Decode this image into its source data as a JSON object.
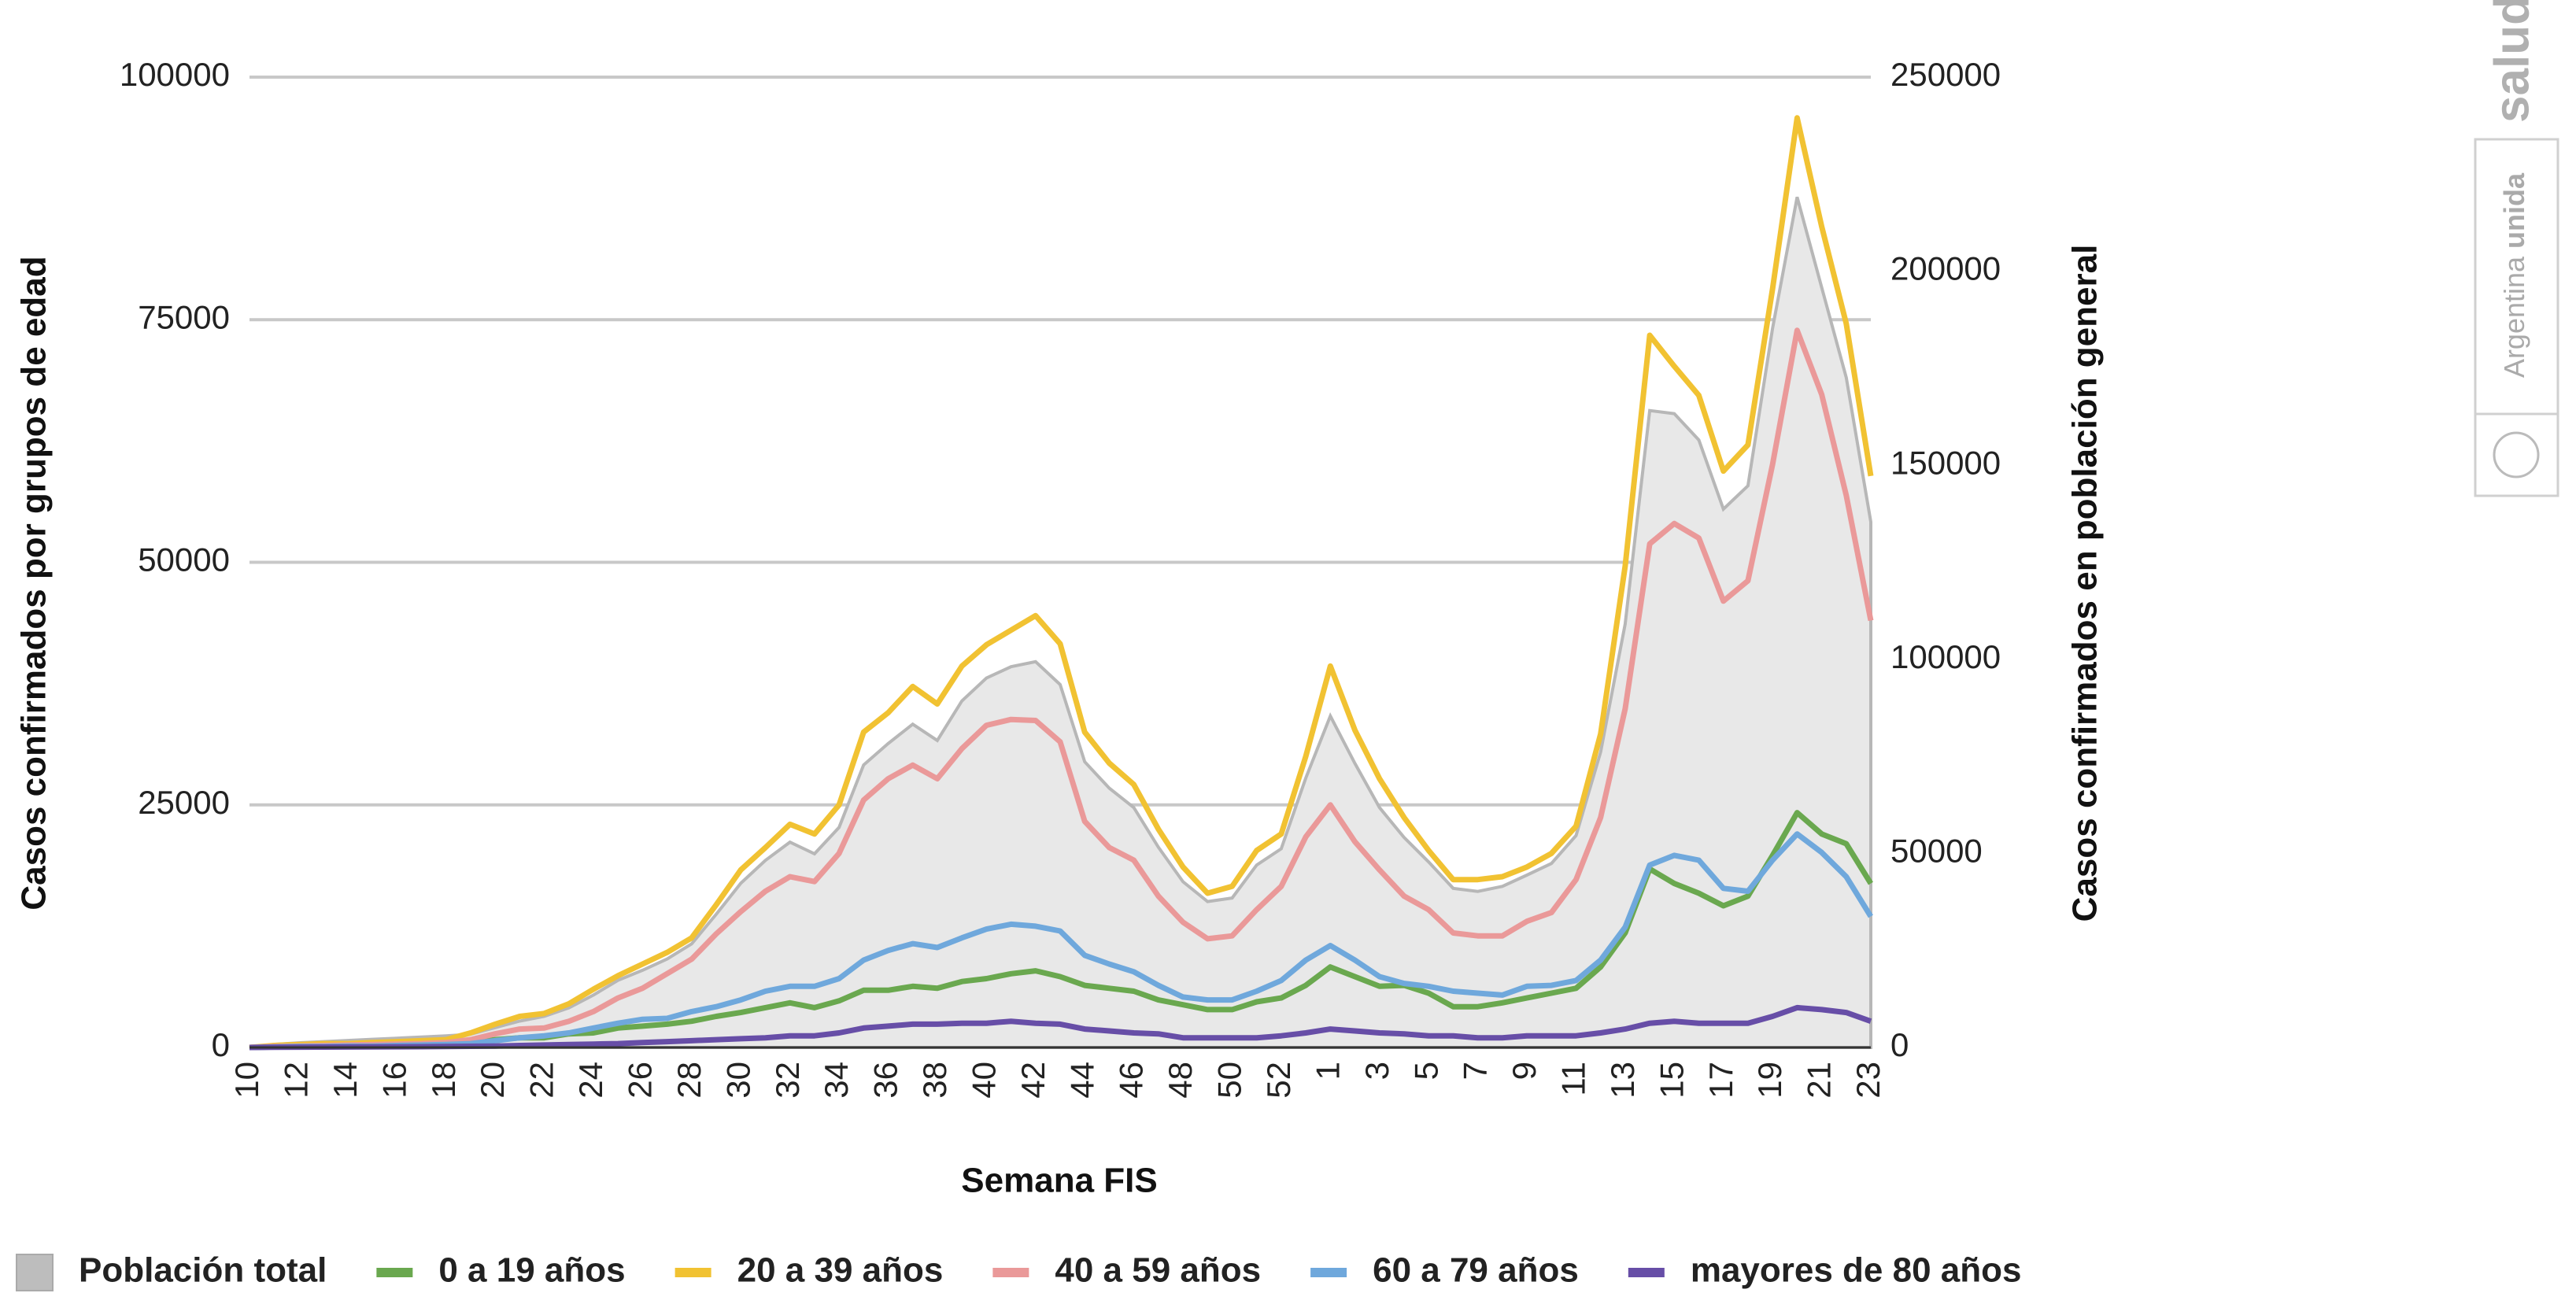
{
  "chart_data": {
    "type": "line",
    "x_title": "Semana FIS",
    "y_title": "Casos confirmados por grupos de edad",
    "y2_title": "Casos confirmados en población general",
    "categories": [
      "10",
      null,
      "12",
      null,
      "14",
      null,
      "16",
      null,
      "18",
      null,
      "20",
      null,
      "22",
      null,
      "24",
      null,
      "26",
      null,
      "28",
      null,
      "30",
      null,
      "32",
      null,
      "34",
      null,
      "36",
      null,
      "38",
      null,
      "40",
      null,
      "42",
      null,
      "44",
      null,
      "46",
      null,
      "48",
      null,
      "50",
      null,
      "52",
      null,
      "1",
      null,
      "3",
      null,
      "5",
      null,
      "7",
      null,
      "9",
      null,
      "11",
      null,
      "13",
      null,
      "15",
      null,
      "17",
      null,
      "19",
      null,
      "21",
      null,
      "23"
    ],
    "ylim": [
      0,
      100000
    ],
    "yticks": [
      0,
      25000,
      50000,
      75000,
      100000
    ],
    "y2lim": [
      0,
      250000
    ],
    "y2ticks": [
      0,
      50000,
      100000,
      150000,
      200000,
      250000
    ],
    "grid": true,
    "legend": "bottom",
    "series": [
      {
        "name": "Población total",
        "color": "#e8e8e8",
        "area": true,
        "axis": "y2",
        "values": [
          0,
          800,
          1200,
          1500,
          1800,
          2100,
          2400,
          2700,
          3000,
          3400,
          5100,
          6800,
          8000,
          10200,
          13500,
          17300,
          19900,
          22800,
          26700,
          34300,
          42300,
          48200,
          52900,
          49900,
          56700,
          72800,
          78300,
          83300,
          79100,
          89300,
          95200,
          98100,
          99400,
          93500,
          73600,
          66800,
          61800,
          51600,
          42700,
          37600,
          38500,
          47000,
          51200,
          69400,
          85400,
          73200,
          61800,
          54100,
          47800,
          41000,
          40200,
          41500,
          44400,
          47400,
          54600,
          76100,
          109100,
          164100,
          163300,
          156500,
          138700,
          144700,
          185300,
          219100,
          195800,
          172600,
          135400
        ]
      },
      {
        "name": "0 a 19 años",
        "color": "#6aa84f",
        "values": [
          0,
          50,
          100,
          100,
          150,
          200,
          250,
          300,
          400,
          500,
          800,
          1000,
          1000,
          1400,
          1500,
          2000,
          2200,
          2400,
          2700,
          3200,
          3600,
          4100,
          4600,
          4100,
          4800,
          5900,
          5900,
          6300,
          6100,
          6800,
          7100,
          7600,
          7900,
          7300,
          6400,
          6100,
          5800,
          4900,
          4400,
          3900,
          3900,
          4700,
          5100,
          6400,
          8300,
          7300,
          6300,
          6400,
          5600,
          4200,
          4200,
          4600,
          5100,
          5600,
          6100,
          8300,
          11800,
          18400,
          16900,
          15900,
          14600,
          15600,
          19800,
          24200,
          22000,
          21000,
          16900
        ]
      },
      {
        "name": "20 a 39 años",
        "color": "#f1c232",
        "values": [
          0,
          200,
          300,
          400,
          400,
          500,
          600,
          700,
          800,
          1500,
          2400,
          3200,
          3500,
          4500,
          6000,
          7400,
          8600,
          9800,
          11300,
          14700,
          18300,
          20600,
          23000,
          22000,
          25000,
          32500,
          34500,
          37200,
          35400,
          39300,
          41500,
          43000,
          44500,
          41600,
          32500,
          29300,
          27100,
          22500,
          18600,
          15900,
          16600,
          20300,
          22000,
          30000,
          39300,
          32700,
          27700,
          23700,
          20300,
          17300,
          17300,
          17600,
          18600,
          20000,
          22800,
          32300,
          49600,
          73400,
          70200,
          67200,
          59400,
          62100,
          78200,
          95800,
          84600,
          74600,
          58900
        ]
      },
      {
        "name": "40 a 59 años",
        "color": "#ea9999",
        "values": [
          0,
          100,
          150,
          200,
          250,
          300,
          350,
          400,
          500,
          800,
          1400,
          1900,
          2000,
          2700,
          3700,
          5100,
          6100,
          7600,
          9100,
          11700,
          14000,
          16100,
          17600,
          17100,
          20000,
          25500,
          27700,
          29100,
          27700,
          30800,
          33200,
          33800,
          33700,
          31500,
          23300,
          20600,
          19300,
          15600,
          12900,
          11200,
          11500,
          14200,
          16600,
          21700,
          25000,
          21200,
          18300,
          15600,
          14200,
          11800,
          11500,
          11500,
          13000,
          13900,
          17300,
          23700,
          34900,
          51900,
          54000,
          52500,
          46000,
          48100,
          60100,
          73900,
          67300,
          56900,
          44000
        ]
      },
      {
        "name": "60 a 79 años",
        "color": "#6fa8dc",
        "values": [
          0,
          50,
          100,
          100,
          150,
          150,
          200,
          250,
          300,
          400,
          700,
          1000,
          1200,
          1500,
          2000,
          2500,
          2900,
          3000,
          3700,
          4200,
          4900,
          5800,
          6300,
          6300,
          7100,
          9000,
          10000,
          10700,
          10300,
          11300,
          12200,
          12700,
          12500,
          12000,
          9500,
          8600,
          7800,
          6400,
          5200,
          4900,
          4900,
          5800,
          6900,
          9000,
          10500,
          9000,
          7300,
          6600,
          6300,
          5800,
          5600,
          5400,
          6300,
          6400,
          6900,
          9000,
          12400,
          18800,
          19800,
          19300,
          16400,
          16100,
          19300,
          22000,
          20100,
          17600,
          13500
        ]
      },
      {
        "name": "mayores de 80 años",
        "color": "#674ea7",
        "values": [
          0,
          20,
          30,
          40,
          50,
          60,
          70,
          80,
          100,
          120,
          150,
          200,
          250,
          300,
          350,
          400,
          500,
          600,
          700,
          800,
          900,
          1000,
          1200,
          1200,
          1500,
          2000,
          2200,
          2400,
          2400,
          2500,
          2500,
          2700,
          2500,
          2400,
          1900,
          1700,
          1500,
          1400,
          1000,
          1000,
          1000,
          1000,
          1200,
          1500,
          1900,
          1700,
          1500,
          1400,
          1200,
          1200,
          1000,
          1000,
          1200,
          1200,
          1200,
          1500,
          1900,
          2500,
          2700,
          2500,
          2500,
          2500,
          3200,
          4100,
          3900,
          3600,
          2700
        ]
      }
    ]
  },
  "logo": {
    "brand": "salud",
    "tagline": "Argentina",
    "tagline_bold": "unida"
  }
}
